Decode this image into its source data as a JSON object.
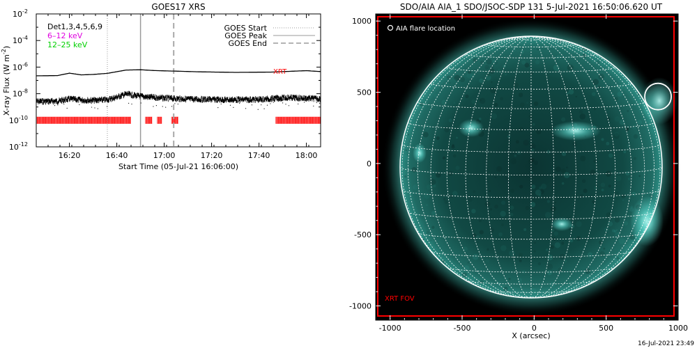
{
  "chart_data": [
    {
      "type": "line",
      "title": "GOES17 XRS",
      "xlabel": "Start Time (05-Jul-21 16:06:00)",
      "ylabel": "X-ray Flux (W m",
      "ylabel_sup": "-2",
      "ylabel_close": ")",
      "y_scale": "log",
      "xlim": [
        "16:06",
        "18:06"
      ],
      "ylim": [
        1e-12,
        0.01
      ],
      "x_ticks": [
        "16:20",
        "16:40",
        "17:00",
        "17:20",
        "17:40",
        "18:00"
      ],
      "y_tick_exponents": [
        "-12",
        "-10",
        "-8",
        "-6",
        "-4",
        "-2"
      ],
      "y_tick_base": "10",
      "legend_left": {
        "bands": "Det1,3,4,5,6,9",
        "low": "6–12 keV",
        "high": "12–25 keV"
      },
      "legend_right": [
        "GOES Start",
        "GOES Peak",
        "GOES End"
      ],
      "markers": {
        "goes_start": "16:36",
        "goes_peak": "16:50",
        "goes_end": "17:04"
      },
      "xrt_label": "XRT",
      "xrt_coverage": [
        [
          "16:06",
          "16:46"
        ],
        [
          "16:52",
          "16:55"
        ],
        [
          "16:57",
          "16:59"
        ],
        [
          "17:03",
          "17:06"
        ],
        [
          "17:47",
          "18:06"
        ]
      ],
      "xrt_flux": 1e-10,
      "series": [
        {
          "x": [
            "16:06",
            "16:15",
            "16:20",
            "16:25",
            "16:30",
            "16:36",
            "16:40",
            "16:44",
            "16:50",
            "16:56",
            "17:04",
            "17:15",
            "17:30",
            "17:45",
            "18:00",
            "18:06"
          ],
          "y": [
            2.2e-07,
            2.3e-07,
            3.5e-07,
            2.6e-07,
            2.8e-07,
            3.4e-07,
            4.5e-07,
            6e-07,
            6.3e-07,
            5.5e-07,
            5e-07,
            4.4e-07,
            4e-07,
            4.2e-07,
            5.4e-07,
            4.6e-07
          ]
        },
        {
          "x": [
            "16:06",
            "16:15",
            "16:20",
            "16:25",
            "16:30",
            "16:36",
            "16:40",
            "16:44",
            "16:48",
            "16:52",
            "17:00",
            "17:10",
            "17:25",
            "17:40",
            "17:52",
            "18:06"
          ],
          "y": [
            2.6e-09,
            2.7e-09,
            4e-09,
            3.3e-09,
            3.1e-09,
            3.5e-09,
            5.5e-09,
            9.5e-09,
            7e-09,
            5.8e-09,
            4.6e-09,
            3.9e-09,
            3.5e-09,
            3.6e-09,
            5e-09,
            4.1e-09
          ]
        }
      ],
      "colors": {
        "high_flux": "#000000",
        "low_flux": "#000000",
        "band_low": "#e000e0",
        "band_high": "#00d000",
        "xrt": "#ff0000"
      }
    },
    {
      "type": "image",
      "title": "SDO/AIA AIA_1 SDO/JSOC-SDP 131  5-Jul-2021 16:50:06.620 UT",
      "xlabel": "X (arcsec)",
      "xlim": [
        -1100,
        1000
      ],
      "ylim": [
        -1100,
        1050
      ],
      "x_ticks": [
        "-1000",
        "-500",
        "0",
        "500",
        "1000"
      ],
      "y_ticks": [
        "1000",
        "500",
        "0",
        "-500",
        "-1000"
      ],
      "legend": "AIA flare location",
      "fov_label": "XRT FOV",
      "fov_range": {
        "x": [
          -1100,
          1000
        ],
        "y": [
          -1100,
          1030
        ]
      },
      "flare_location": {
        "x": 860,
        "y": 470
      },
      "solar_radius_arcsec": 945,
      "grid_spacing_deg": 10,
      "colors": {
        "sky": "#000000",
        "disk_center": "#0b3432",
        "disk_limb": "#2c8f85",
        "glow": "#72fff2",
        "grid": "#ffffff",
        "fov": "#ff0000",
        "flare_circle": "#ffffff"
      }
    }
  ],
  "footer": {
    "timestamp": "16-Jul-2021 23:49"
  }
}
